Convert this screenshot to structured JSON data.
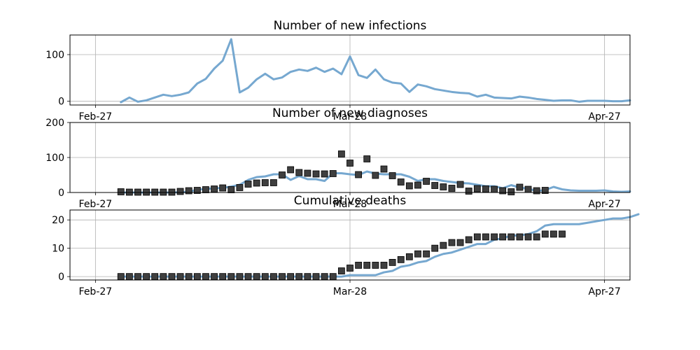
{
  "chart_data": [
    {
      "type": "line",
      "title": "Number of new infections",
      "x_start": "Feb-27",
      "xticks": [
        {
          "label": "Feb-27",
          "day": 0
        },
        {
          "label": "Mar-28",
          "day": 30
        },
        {
          "label": "Apr-27",
          "day": 60
        }
      ],
      "xlim": [
        -3,
        63
      ],
      "ylim": [
        -8,
        142
      ],
      "yticks": [
        0,
        100
      ],
      "grid": true,
      "series": [
        {
          "kind": "line",
          "color": "#6fa3cd",
          "x_start": 3,
          "values": [
            -2,
            8,
            -1,
            2,
            8,
            14,
            11,
            14,
            19,
            38,
            48,
            70,
            87,
            133,
            19,
            29,
            47,
            59,
            47,
            51,
            63,
            68,
            65,
            72,
            63,
            70,
            58,
            96,
            56,
            50,
            68,
            47,
            40,
            38,
            20,
            36,
            32,
            26,
            23,
            20,
            18,
            17,
            10,
            14,
            8,
            7,
            6,
            10,
            8,
            5,
            3,
            1,
            2,
            2,
            -1,
            1,
            1,
            1,
            0,
            0,
            2
          ]
        }
      ]
    },
    {
      "type": "line",
      "title": "Number of new diagnoses",
      "xticks": [
        {
          "label": "Feb-27",
          "day": 0
        },
        {
          "label": "Mar-28",
          "day": 30
        },
        {
          "label": "Apr-27",
          "day": 60
        }
      ],
      "xlim": [
        -3,
        63
      ],
      "ylim": [
        0,
        200
      ],
      "yticks": [
        0,
        100,
        200
      ],
      "grid": true,
      "series": [
        {
          "kind": "line",
          "color": "#6fa3cd",
          "x_start": 3,
          "values": [
            0,
            0,
            0,
            0,
            0,
            0,
            0,
            1,
            2,
            8,
            10,
            12,
            13,
            17,
            22,
            36,
            44,
            46,
            52,
            52,
            36,
            47,
            38,
            38,
            33,
            55,
            55,
            52,
            50,
            60,
            54,
            52,
            52,
            52,
            45,
            33,
            38,
            38,
            33,
            30,
            27,
            26,
            22,
            18,
            18,
            12,
            21,
            14,
            11,
            4,
            7,
            16,
            9,
            6,
            5,
            5,
            5,
            6,
            3,
            2,
            3
          ]
        },
        {
          "kind": "scatter",
          "color": "#3f3f3f",
          "x_start": 3,
          "values": [
            2,
            1,
            1,
            1,
            1,
            1,
            1,
            3,
            5,
            6,
            8,
            10,
            13,
            8,
            14,
            24,
            27,
            28,
            28,
            50,
            65,
            57,
            55,
            53,
            53,
            54,
            110,
            84,
            51,
            96,
            49,
            67,
            48,
            30,
            19,
            21,
            32,
            20,
            16,
            12,
            23,
            4,
            11,
            10,
            9,
            5,
            2,
            15,
            9,
            5,
            6
          ]
        }
      ]
    },
    {
      "type": "line",
      "title": "Cumulative deaths",
      "xticks": [
        {
          "label": "Feb-27",
          "day": 0
        },
        {
          "label": "Mar-28",
          "day": 30
        },
        {
          "label": "Apr-27",
          "day": 60
        }
      ],
      "xlim": [
        -3,
        63
      ],
      "ylim": [
        -1.2,
        23.5
      ],
      "yticks": [
        0,
        10,
        20
      ],
      "grid": true,
      "series": [
        {
          "kind": "line",
          "color": "#6fa3cd",
          "x_start": 3,
          "values": [
            0,
            0,
            0,
            0,
            0,
            0,
            0,
            0,
            0,
            0,
            0,
            0,
            0,
            0,
            0,
            0,
            0,
            0,
            0,
            0,
            0,
            0,
            0,
            0,
            0,
            0,
            0,
            0.5,
            0.5,
            0.5,
            0.5,
            1.5,
            2,
            3.5,
            4,
            5,
            5.5,
            7,
            8,
            8.5,
            9.5,
            10.5,
            11.5,
            11.5,
            13,
            13.5,
            14.5,
            14.5,
            15,
            16,
            18,
            18.5,
            18.5,
            18.5,
            18.5,
            19,
            19.5,
            20,
            20.5,
            20.5,
            21,
            22
          ]
        },
        {
          "kind": "scatter",
          "color": "#3f3f3f",
          "x_start": 3,
          "values": [
            0,
            0,
            0,
            0,
            0,
            0,
            0,
            0,
            0,
            0,
            0,
            0,
            0,
            0,
            0,
            0,
            0,
            0,
            0,
            0,
            0,
            0,
            0,
            0,
            0,
            0,
            2,
            3,
            4,
            4,
            4,
            4,
            5,
            6,
            7,
            8,
            8,
            10,
            11,
            12,
            12,
            13,
            14,
            14,
            14,
            14,
            14,
            14,
            14,
            14,
            15,
            15,
            15
          ]
        }
      ]
    }
  ]
}
